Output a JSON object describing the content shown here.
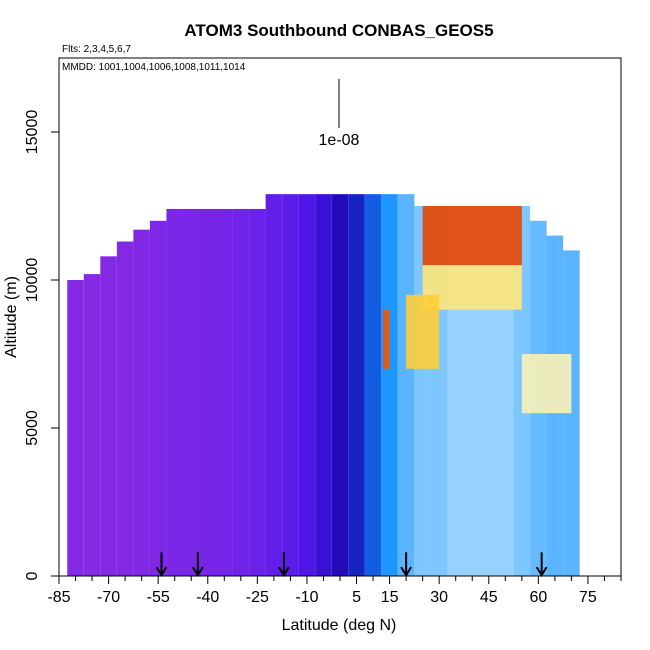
{
  "chart_data": {
    "type": "heatmap",
    "title": "ATOM3 Southbound CONBAS_GEOS5",
    "flights_note": "Flts: 2,3,4,5,6,7",
    "dates_note": "MMDD: 1001,1004,1006,1008,1011,1014",
    "xlabel": "Latitude (deg N)",
    "ylabel": "Altitude (m)",
    "xlim": [
      -85,
      85
    ],
    "ylim": [
      0,
      17500
    ],
    "x_ticks": [
      -85,
      -70,
      -55,
      -40,
      -25,
      -10,
      5,
      15,
      30,
      45,
      60,
      75
    ],
    "x_tick_labels": [
      "-85",
      "-70",
      "-55",
      "-40",
      "-25",
      "-10",
      "5",
      "15",
      "30",
      "45",
      "60",
      "75"
    ],
    "x_minor_ticks": [
      -80,
      -75,
      -65,
      -60,
      -50,
      -45,
      -35,
      -30,
      -20,
      -15,
      -5,
      0,
      10,
      20,
      25,
      35,
      40,
      50,
      55,
      65,
      70,
      80,
      85
    ],
    "y_ticks": [
      0,
      5000,
      10000,
      15000
    ],
    "y_tick_labels": [
      "0",
      "5000",
      "10000",
      "15000"
    ],
    "scale_marker_label": "1e-08",
    "scale_marker_lat": 0,
    "flight_markers_lat": [
      -54,
      -43,
      -17,
      20,
      61
    ],
    "columns": [
      {
        "lat": -80,
        "top": 10000,
        "value": 0.02
      },
      {
        "lat": -75,
        "top": 10200,
        "value": 0.02
      },
      {
        "lat": -70,
        "top": 10800,
        "value": 0.03
      },
      {
        "lat": -65,
        "top": 11300,
        "value": 0.03
      },
      {
        "lat": -60,
        "top": 11700,
        "value": 0.04
      },
      {
        "lat": -55,
        "top": 12000,
        "value": 0.05
      },
      {
        "lat": -50,
        "top": 12400,
        "value": 0.06
      },
      {
        "lat": -45,
        "top": 12400,
        "value": 0.07
      },
      {
        "lat": -40,
        "top": 12400,
        "value": 0.08
      },
      {
        "lat": -35,
        "top": 12400,
        "value": 0.09
      },
      {
        "lat": -30,
        "top": 12400,
        "value": 0.11
      },
      {
        "lat": -25,
        "top": 12400,
        "value": 0.13
      },
      {
        "lat": -20,
        "top": 12900,
        "value": 0.15
      },
      {
        "lat": -15,
        "top": 12900,
        "value": 0.17
      },
      {
        "lat": -10,
        "top": 12900,
        "value": 0.2
      },
      {
        "lat": -5,
        "top": 12900,
        "value": 0.25
      },
      {
        "lat": 0,
        "top": 12900,
        "value": 0.3
      },
      {
        "lat": 5,
        "top": 12900,
        "value": 0.35
      },
      {
        "lat": 10,
        "top": 12900,
        "value": 0.42
      },
      {
        "lat": 15,
        "top": 12900,
        "value": 0.5
      },
      {
        "lat": 20,
        "top": 12900,
        "value": 0.55
      },
      {
        "lat": 25,
        "top": 12500,
        "value": 0.58
      },
      {
        "lat": 30,
        "top": 12500,
        "value": 0.58
      },
      {
        "lat": 35,
        "top": 12500,
        "value": 0.6
      },
      {
        "lat": 40,
        "top": 12500,
        "value": 0.6
      },
      {
        "lat": 45,
        "top": 12500,
        "value": 0.6
      },
      {
        "lat": 50,
        "top": 12500,
        "value": 0.6
      },
      {
        "lat": 55,
        "top": 12500,
        "value": 0.58
      },
      {
        "lat": 60,
        "top": 12000,
        "value": 0.56
      },
      {
        "lat": 65,
        "top": 11500,
        "value": 0.55
      },
      {
        "lat": 70,
        "top": 11000,
        "value": 0.55
      }
    ],
    "features": [
      {
        "lat_range": [
          25,
          55
        ],
        "alt_range": [
          10500,
          12500
        ],
        "value": 0.96
      },
      {
        "lat_range": [
          25,
          55
        ],
        "alt_range": [
          9000,
          10500
        ],
        "value": 0.8
      },
      {
        "lat_range": [
          20,
          30
        ],
        "alt_range": [
          7000,
          9500
        ],
        "value": 0.85
      },
      {
        "lat_range": [
          55,
          70
        ],
        "alt_range": [
          5500,
          7500
        ],
        "value": 0.75
      },
      {
        "lat_range": [
          13,
          15
        ],
        "alt_range": [
          7000,
          9000
        ],
        "value": 0.95
      }
    ]
  }
}
